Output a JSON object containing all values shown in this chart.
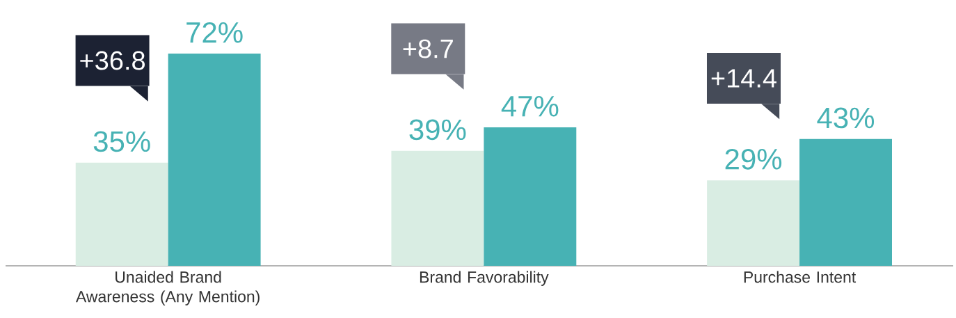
{
  "chart_data": {
    "type": "bar",
    "categories": [
      "Unaided Brand Awareness (Any Mention)",
      "Brand Favorability",
      "Purchase Intent"
    ],
    "series": [
      {
        "color": "#d9ede3",
        "values": [
          35,
          39,
          29
        ],
        "value_labels": [
          "35%",
          "39%",
          "29%"
        ]
      },
      {
        "color": "#47b2b4",
        "values": [
          72,
          47,
          43
        ],
        "value_labels": [
          "72%",
          "47%",
          "43%"
        ]
      }
    ],
    "tick_labels": "x",
    "annotations": [
      "+36.8",
      "+8.7",
      "+14.4"
    ]
  }
}
